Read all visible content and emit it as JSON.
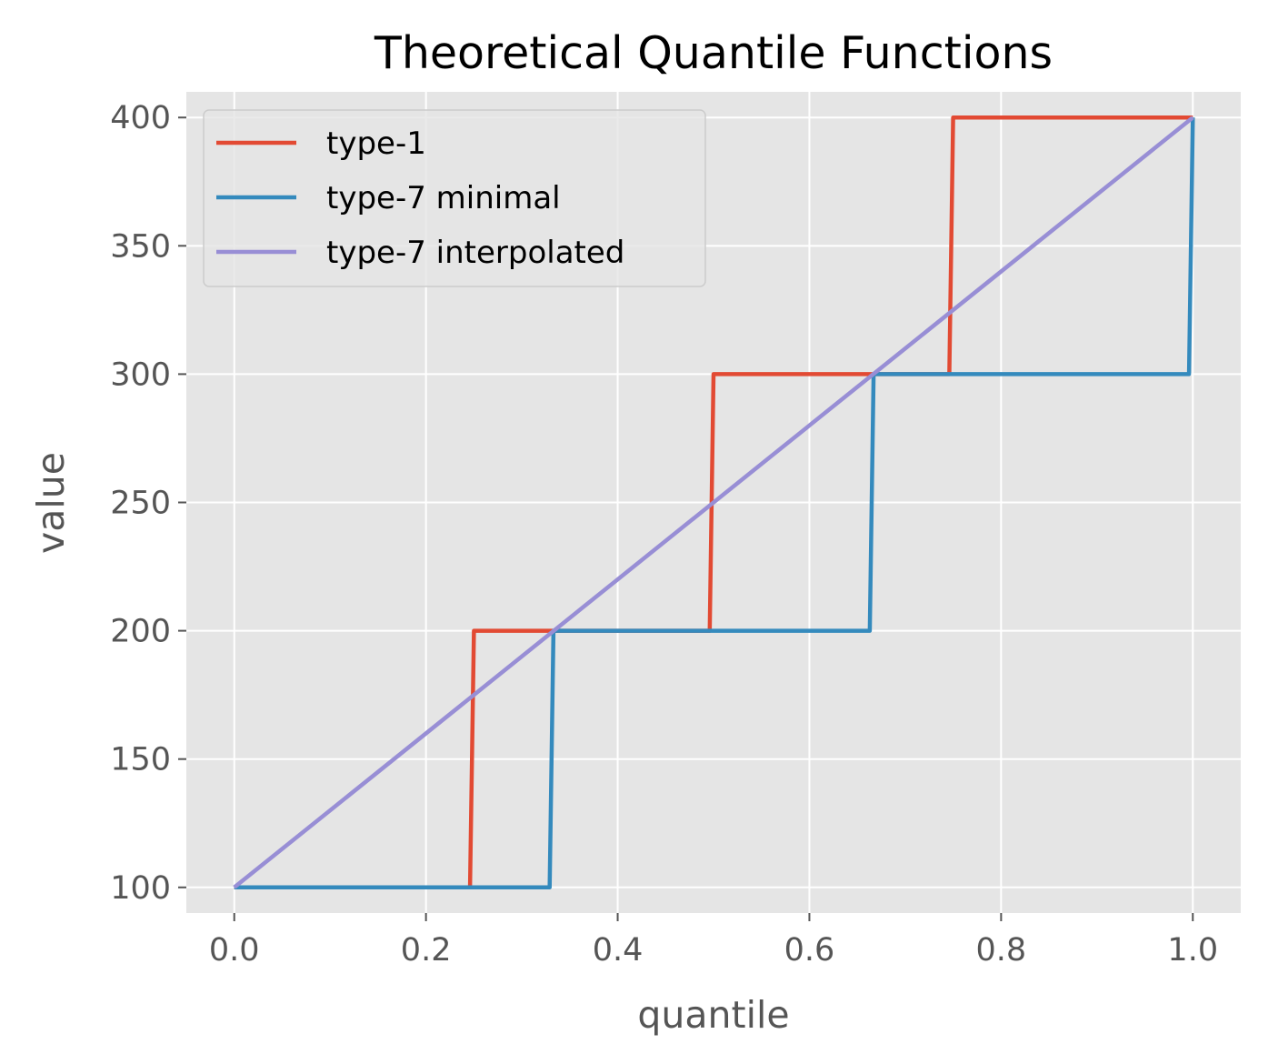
{
  "chart_data": {
    "type": "line",
    "title": "Theoretical Quantile Functions",
    "xlabel": "quantile",
    "ylabel": "value",
    "xlim": [
      -0.05,
      1.05
    ],
    "ylim": [
      90,
      410
    ],
    "xticks": [
      0.0,
      0.2,
      0.4,
      0.6,
      0.8,
      1.0
    ],
    "xtick_labels": [
      "0.0",
      "0.2",
      "0.4",
      "0.6",
      "0.8",
      "1.0"
    ],
    "yticks": [
      100,
      150,
      200,
      250,
      300,
      350,
      400
    ],
    "ytick_labels": [
      "100",
      "150",
      "200",
      "250",
      "300",
      "350",
      "400"
    ],
    "grid": true,
    "legend_position": "upper-left",
    "series": [
      {
        "name": "type-1",
        "color": "#E24A33",
        "x": [
          0.0,
          0.246,
          0.25,
          0.496,
          0.5,
          0.746,
          0.75,
          1.0
        ],
        "y": [
          100,
          100,
          200,
          200,
          300,
          300,
          400,
          400
        ]
      },
      {
        "name": "type-7 minimal",
        "color": "#348ABD",
        "x": [
          0.0,
          0.329,
          0.333,
          0.663,
          0.667,
          0.996,
          1.0
        ],
        "y": [
          100,
          100,
          200,
          200,
          300,
          300,
          400
        ]
      },
      {
        "name": "type-7 interpolated",
        "color": "#988ED5",
        "x": [
          0.0,
          1.0
        ],
        "y": [
          100,
          400
        ]
      }
    ]
  }
}
